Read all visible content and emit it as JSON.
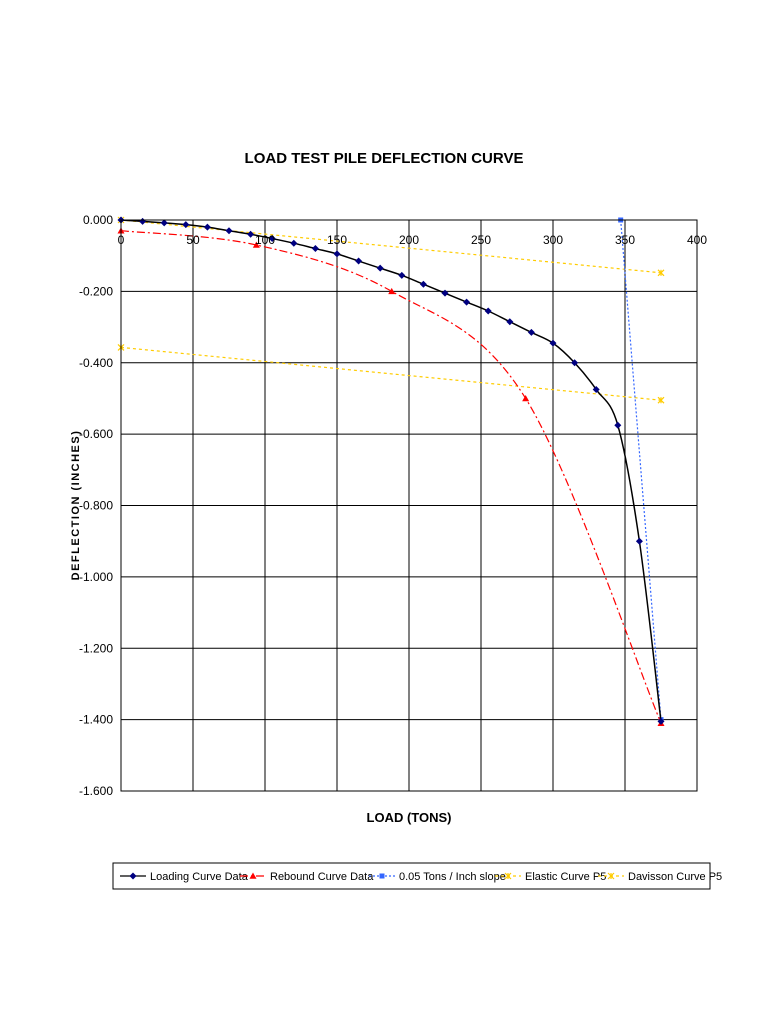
{
  "chart_data": {
    "type": "line",
    "title": "LOAD TEST PILE DEFLECTION CURVE",
    "xlabel": "LOAD (TONS)",
    "ylabel": "DEFLECTION (INCHES)",
    "xlim": [
      0,
      400
    ],
    "ylim": [
      -1.6,
      0
    ],
    "xticks": [
      0,
      50,
      100,
      150,
      200,
      250,
      300,
      350,
      400
    ],
    "yticks": [
      0,
      -0.2,
      -0.4,
      -0.6,
      -0.8,
      -1.0,
      -1.2,
      -1.4,
      -1.6
    ],
    "xtick_labels": [
      "0",
      "50",
      "100",
      "150",
      "200",
      "250",
      "300",
      "350",
      "400"
    ],
    "ytick_labels": [
      "0.000",
      "-0.200",
      "-0.400",
      "-0.600",
      "-0.800",
      "-1.000",
      "-1.200",
      "-1.400",
      "-1.600"
    ],
    "grid": true,
    "legend_position": "bottom",
    "series": [
      {
        "name": "Loading Curve Data",
        "color": "#000080",
        "line_color": "#000000",
        "marker": "diamond",
        "dash": "",
        "smooth": true,
        "x": [
          0,
          15,
          30,
          45,
          60,
          75,
          90,
          105,
          120,
          135,
          150,
          165,
          180,
          195,
          210,
          225,
          240,
          255,
          270,
          285,
          300,
          315,
          330,
          345,
          360,
          375
        ],
        "y": [
          0,
          -0.004,
          -0.008,
          -0.013,
          -0.02,
          -0.03,
          -0.04,
          -0.052,
          -0.065,
          -0.08,
          -0.095,
          -0.115,
          -0.135,
          -0.155,
          -0.18,
          -0.205,
          -0.23,
          -0.255,
          -0.285,
          -0.315,
          -0.345,
          -0.4,
          -0.475,
          -0.575,
          -0.9,
          -1.405
        ]
      },
      {
        "name": "Rebound Curve Data",
        "color": "#ff0000",
        "line_color": "#ff0000",
        "marker": "triangle",
        "dash": "8,3,2,3",
        "smooth": true,
        "x": [
          0,
          94,
          188,
          281,
          375
        ],
        "y": [
          -0.03,
          -0.07,
          -0.2,
          -0.5,
          -1.41
        ]
      },
      {
        "name": "0.05 Tons / Inch slope",
        "color": "#3366ff",
        "line_color": "#3366ff",
        "marker": "square",
        "dash": "2,2",
        "smooth": false,
        "x": [
          347,
          375
        ],
        "y": [
          0,
          -1.4
        ]
      },
      {
        "name": "Elastic Curve P5",
        "color": "#ffcc00",
        "line_color": "#ffcc00",
        "marker": "star",
        "dash": "3,3",
        "smooth": false,
        "x": [
          0,
          375
        ],
        "y": [
          0,
          -0.148
        ]
      },
      {
        "name": "Davisson Curve P5",
        "color": "#ffcc00",
        "line_color": "#ffcc00",
        "marker": "star",
        "dash": "3,3",
        "smooth": false,
        "x": [
          0,
          375
        ],
        "y": [
          -0.357,
          -0.505
        ]
      }
    ]
  }
}
